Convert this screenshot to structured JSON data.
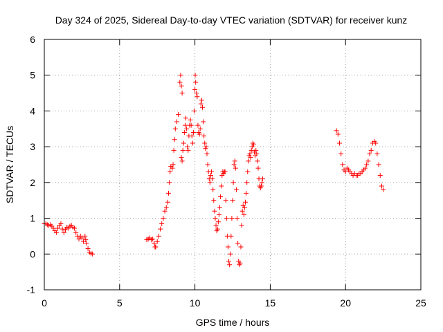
{
  "chart_data": {
    "type": "scatter",
    "title": "Day 324 of 2025, Sidereal Day-to-day VTEC variation (SDTVAR) for receiver kunz",
    "xlabel": "GPS time / hours",
    "ylabel": "SDTVAR / TECUs",
    "xlim": [
      0,
      25
    ],
    "ylim": [
      -1,
      6
    ],
    "x_ticks": [
      0,
      5,
      10,
      15,
      20,
      25
    ],
    "y_ticks": [
      -1,
      0,
      1,
      2,
      3,
      4,
      5,
      6
    ],
    "grid": true,
    "marker": "+",
    "series_color": "#ff0000",
    "series": [
      {
        "name": "SDTVAR",
        "points": [
          [
            0.0,
            0.85
          ],
          [
            0.1,
            0.85
          ],
          [
            0.2,
            0.82
          ],
          [
            0.3,
            0.8
          ],
          [
            0.4,
            0.82
          ],
          [
            0.5,
            0.78
          ],
          [
            0.6,
            0.72
          ],
          [
            0.7,
            0.65
          ],
          [
            0.8,
            0.6
          ],
          [
            0.9,
            0.72
          ],
          [
            1.0,
            0.8
          ],
          [
            1.1,
            0.85
          ],
          [
            1.2,
            0.7
          ],
          [
            1.3,
            0.6
          ],
          [
            1.4,
            0.68
          ],
          [
            1.5,
            0.75
          ],
          [
            1.6,
            0.72
          ],
          [
            1.7,
            0.78
          ],
          [
            1.8,
            0.8
          ],
          [
            1.9,
            0.75
          ],
          [
            2.0,
            0.72
          ],
          [
            2.1,
            0.6
          ],
          [
            2.2,
            0.5
          ],
          [
            2.3,
            0.42
          ],
          [
            2.4,
            0.5
          ],
          [
            2.5,
            0.45
          ],
          [
            2.6,
            0.35
          ],
          [
            2.7,
            0.5
          ],
          [
            2.75,
            0.4
          ],
          [
            2.8,
            0.3
          ],
          [
            2.9,
            0.15
          ],
          [
            3.0,
            0.05
          ],
          [
            3.1,
            0.02
          ],
          [
            3.2,
            0.0
          ],
          [
            6.8,
            0.4
          ],
          [
            6.9,
            0.42
          ],
          [
            7.0,
            0.45
          ],
          [
            7.1,
            0.4
          ],
          [
            7.2,
            0.42
          ],
          [
            7.3,
            0.3
          ],
          [
            7.35,
            0.2
          ],
          [
            7.4,
            0.2
          ],
          [
            7.5,
            0.35
          ],
          [
            7.6,
            0.5
          ],
          [
            7.7,
            0.7
          ],
          [
            7.8,
            0.85
          ],
          [
            7.9,
            1.0
          ],
          [
            8.0,
            1.2
          ],
          [
            8.1,
            1.3
          ],
          [
            8.2,
            1.45
          ],
          [
            8.25,
            1.7
          ],
          [
            8.3,
            2.0
          ],
          [
            8.35,
            2.3
          ],
          [
            8.4,
            2.45
          ],
          [
            8.5,
            2.4
          ],
          [
            8.55,
            2.5
          ],
          [
            8.6,
            2.9
          ],
          [
            8.65,
            3.2
          ],
          [
            8.7,
            3.5
          ],
          [
            8.8,
            3.7
          ],
          [
            8.9,
            3.9
          ],
          [
            9.0,
            4.8
          ],
          [
            9.05,
            5.0
          ],
          [
            9.1,
            4.7
          ],
          [
            9.15,
            4.5
          ],
          [
            9.1,
            2.7
          ],
          [
            9.15,
            2.6
          ],
          [
            9.2,
            2.9
          ],
          [
            9.25,
            3.1
          ],
          [
            9.3,
            3.4
          ],
          [
            9.35,
            3.6
          ],
          [
            9.4,
            3.8
          ],
          [
            9.45,
            3.5
          ],
          [
            9.5,
            3.0
          ],
          [
            9.55,
            2.9
          ],
          [
            9.6,
            3.3
          ],
          [
            9.65,
            3.6
          ],
          [
            9.7,
            3.75
          ],
          [
            9.75,
            3.6
          ],
          [
            9.8,
            3.3
          ],
          [
            9.85,
            3.1
          ],
          [
            9.9,
            3.4
          ],
          [
            9.95,
            4.0
          ],
          [
            10.0,
            4.6
          ],
          [
            10.02,
            5.0
          ],
          [
            10.05,
            4.8
          ],
          [
            10.1,
            4.5
          ],
          [
            10.15,
            4.4
          ],
          [
            10.2,
            3.6
          ],
          [
            10.25,
            3.4
          ],
          [
            10.3,
            3.35
          ],
          [
            10.35,
            3.5
          ],
          [
            10.4,
            4.2
          ],
          [
            10.45,
            4.3
          ],
          [
            10.5,
            4.1
          ],
          [
            10.55,
            3.7
          ],
          [
            10.6,
            3.3
          ],
          [
            10.65,
            3.1
          ],
          [
            10.7,
            2.95
          ],
          [
            10.75,
            3.0
          ],
          [
            10.8,
            2.8
          ],
          [
            10.85,
            2.5
          ],
          [
            10.9,
            2.3
          ],
          [
            10.95,
            2.1
          ],
          [
            11.0,
            2.0
          ],
          [
            11.05,
            2.2
          ],
          [
            11.1,
            2.3
          ],
          [
            11.15,
            2.1
          ],
          [
            11.2,
            1.8
          ],
          [
            11.25,
            1.5
          ],
          [
            11.3,
            1.2
          ],
          [
            11.35,
            1.0
          ],
          [
            11.4,
            0.8
          ],
          [
            11.45,
            0.65
          ],
          [
            11.5,
            0.7
          ],
          [
            11.55,
            0.9
          ],
          [
            11.6,
            1.1
          ],
          [
            11.65,
            1.3
          ],
          [
            11.7,
            1.6
          ],
          [
            11.75,
            1.9
          ],
          [
            11.8,
            2.2
          ],
          [
            11.85,
            2.3
          ],
          [
            11.9,
            2.25
          ],
          [
            11.95,
            2.3
          ],
          [
            12.0,
            2.3
          ],
          [
            12.05,
            1.5
          ],
          [
            12.1,
            1.0
          ],
          [
            12.15,
            0.5
          ],
          [
            12.2,
            0.2
          ],
          [
            12.25,
            -0.2
          ],
          [
            12.3,
            -0.3
          ],
          [
            12.35,
            0.0
          ],
          [
            12.4,
            0.5
          ],
          [
            12.45,
            1.0
          ],
          [
            12.5,
            1.5
          ],
          [
            12.55,
            2.0
          ],
          [
            12.6,
            2.5
          ],
          [
            12.65,
            2.6
          ],
          [
            12.7,
            2.4
          ],
          [
            12.75,
            1.8
          ],
          [
            12.8,
            1.0
          ],
          [
            12.85,
            0.3
          ],
          [
            12.9,
            -0.2
          ],
          [
            12.95,
            -0.3
          ],
          [
            13.0,
            -0.25
          ],
          [
            13.05,
            0.2
          ],
          [
            13.1,
            0.8
          ],
          [
            13.15,
            1.2
          ],
          [
            13.2,
            1.35
          ],
          [
            13.25,
            1.1
          ],
          [
            13.3,
            1.3
          ],
          [
            13.35,
            1.45
          ],
          [
            13.4,
            1.7
          ],
          [
            13.45,
            2.0
          ],
          [
            13.5,
            2.3
          ],
          [
            13.55,
            2.6
          ],
          [
            13.6,
            2.75
          ],
          [
            13.65,
            2.8
          ],
          [
            13.7,
            2.7
          ],
          [
            13.75,
            2.9
          ],
          [
            13.8,
            3.0
          ],
          [
            13.85,
            3.1
          ],
          [
            13.9,
            3.05
          ],
          [
            13.95,
            2.85
          ],
          [
            14.0,
            2.75
          ],
          [
            14.05,
            2.9
          ],
          [
            14.1,
            2.8
          ],
          [
            14.15,
            2.6
          ],
          [
            14.2,
            2.4
          ],
          [
            14.25,
            2.1
          ],
          [
            14.3,
            1.9
          ],
          [
            14.35,
            1.85
          ],
          [
            14.4,
            1.9
          ],
          [
            14.45,
            2.0
          ],
          [
            14.5,
            2.1
          ],
          [
            19.4,
            3.45
          ],
          [
            19.5,
            3.35
          ],
          [
            19.6,
            3.1
          ],
          [
            19.7,
            2.8
          ],
          [
            19.8,
            2.5
          ],
          [
            19.9,
            2.35
          ],
          [
            20.0,
            2.3
          ],
          [
            20.1,
            2.4
          ],
          [
            20.2,
            2.35
          ],
          [
            20.3,
            2.3
          ],
          [
            20.4,
            2.25
          ],
          [
            20.5,
            2.2
          ],
          [
            20.6,
            2.25
          ],
          [
            20.7,
            2.2
          ],
          [
            20.8,
            2.2
          ],
          [
            20.9,
            2.25
          ],
          [
            21.0,
            2.25
          ],
          [
            21.1,
            2.3
          ],
          [
            21.2,
            2.35
          ],
          [
            21.3,
            2.4
          ],
          [
            21.4,
            2.5
          ],
          [
            21.5,
            2.6
          ],
          [
            21.6,
            2.8
          ],
          [
            21.7,
            2.9
          ],
          [
            21.8,
            3.1
          ],
          [
            21.9,
            3.15
          ],
          [
            22.0,
            3.1
          ],
          [
            22.1,
            2.8
          ],
          [
            22.2,
            2.5
          ],
          [
            22.3,
            2.2
          ],
          [
            22.4,
            1.9
          ],
          [
            22.5,
            1.8
          ]
        ]
      }
    ]
  }
}
